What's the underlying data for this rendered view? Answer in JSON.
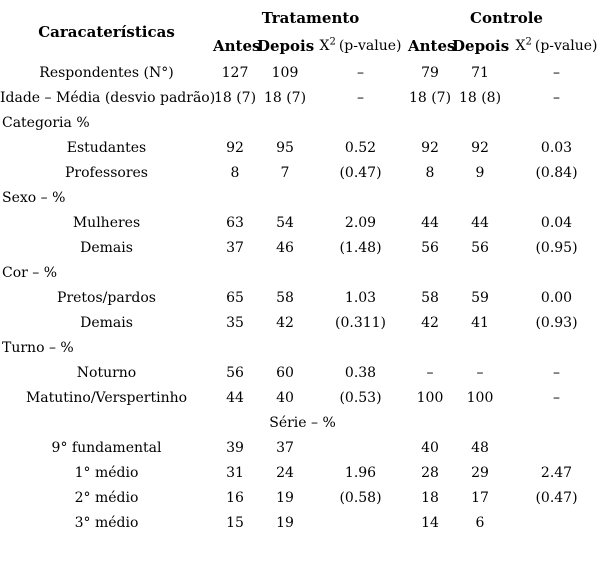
{
  "colors": {
    "text": "#000000",
    "background": "#ffffff"
  },
  "table": {
    "header": {
      "characteristics": "Caracaterísticas",
      "treatment": "Tratamento",
      "control": "Controle",
      "sub": {
        "antes": "Antes",
        "depois": "Depois",
        "chi_base": "X",
        "chi_sup": "2",
        "pvalue": "(p-value)"
      }
    },
    "rows": [
      {
        "type": "data",
        "label": "Respondentes (N°)",
        "cells": [
          "127",
          "109",
          "–",
          "79",
          "71",
          "–"
        ]
      },
      {
        "type": "data",
        "label": "Idade – Média (desvio padrão)",
        "cells": [
          "18 (7)",
          "18 (7)",
          "–",
          "18 (7)",
          "18 (8)",
          "–"
        ]
      },
      {
        "type": "section",
        "label": "Categoria %",
        "cells": [
          "",
          "",
          "",
          "",
          "",
          ""
        ]
      },
      {
        "type": "data",
        "label": "Estudantes",
        "cells": [
          "92",
          "95",
          "0.52",
          "92",
          "92",
          "0.03"
        ]
      },
      {
        "type": "data",
        "label": "Professores",
        "cells": [
          "8",
          "7",
          "(0.47)",
          "8",
          "9",
          "(0.84)"
        ]
      },
      {
        "type": "section",
        "label": "Sexo – %",
        "cells": [
          "",
          "",
          "",
          "",
          "",
          ""
        ]
      },
      {
        "type": "data",
        "label": "Mulheres",
        "cells": [
          "63",
          "54",
          "2.09",
          "44",
          "44",
          "0.04"
        ]
      },
      {
        "type": "data",
        "label": "Demais",
        "cells": [
          "37",
          "46",
          "(1.48)",
          "56",
          "56",
          "(0.95)"
        ]
      },
      {
        "type": "section",
        "label": "Cor – %",
        "cells": [
          "",
          "",
          "",
          "",
          "",
          ""
        ]
      },
      {
        "type": "data",
        "label": "Pretos/pardos",
        "cells": [
          "65",
          "58",
          "1.03",
          "58",
          "59",
          "0.00"
        ]
      },
      {
        "type": "data",
        "label": "Demais",
        "cells": [
          "35",
          "42",
          "(0.311)",
          "42",
          "41",
          "(0.93)"
        ]
      },
      {
        "type": "section",
        "label": "Turno – %",
        "cells": [
          "",
          "",
          "",
          "",
          "",
          ""
        ]
      },
      {
        "type": "data",
        "label": "Noturno",
        "cells": [
          "56",
          "60",
          "0.38",
          "–",
          "–",
          "–"
        ]
      },
      {
        "type": "data",
        "label": "Matutino/Verspertinho",
        "cells": [
          "44",
          "40",
          "(0.53)",
          "100",
          "100",
          "–"
        ]
      },
      {
        "type": "span",
        "label": "Série – %"
      },
      {
        "type": "data",
        "label": "9° fundamental",
        "cells": [
          "39",
          "37",
          "",
          "40",
          "48",
          ""
        ]
      },
      {
        "type": "data",
        "label": "1° médio",
        "cells": [
          "31",
          "24",
          "1.96",
          "28",
          "29",
          "2.47"
        ]
      },
      {
        "type": "data",
        "label": "2° médio",
        "cells": [
          "16",
          "19",
          "(0.58)",
          "18",
          "17",
          "(0.47)"
        ]
      },
      {
        "type": "data",
        "label": "3° médio",
        "cells": [
          "15",
          "19",
          "",
          "14",
          "6",
          ""
        ]
      }
    ]
  }
}
